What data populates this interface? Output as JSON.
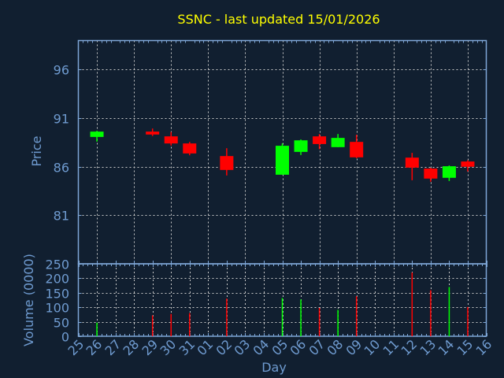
{
  "chart_data": [
    {
      "type": "candlestick",
      "title": "SSNC - last updated 15/01/2026",
      "ylabel": "Price",
      "xlabel": "",
      "ylim": [
        76,
        99
      ],
      "yticks": [
        96,
        91,
        86,
        81
      ],
      "grid": true,
      "categories": [
        "25",
        "26",
        "27",
        "28",
        "29",
        "30",
        "31",
        "01",
        "02",
        "03",
        "04",
        "05",
        "06",
        "07",
        "08",
        "09",
        "10",
        "11",
        "12",
        "13",
        "14",
        "15",
        "16"
      ],
      "candles": [
        {
          "day": "26",
          "open": 89.07,
          "high": 89.7,
          "low": 88.59,
          "close": 89.62
        },
        {
          "day": "29",
          "open": 89.62,
          "high": 89.94,
          "low": 89.16,
          "close": 89.32
        },
        {
          "day": "30",
          "open": 89.13,
          "high": 89.59,
          "low": 88.18,
          "close": 88.4
        },
        {
          "day": "31",
          "open": 88.4,
          "high": 88.56,
          "low": 87.18,
          "close": 87.37
        },
        {
          "day": "02",
          "open": 87.1,
          "high": 87.91,
          "low": 85.1,
          "close": 85.67
        },
        {
          "day": "05",
          "open": 85.18,
          "high": 88.4,
          "low": 85.18,
          "close": 88.16
        },
        {
          "day": "06",
          "open": 87.53,
          "high": 88.81,
          "low": 87.21,
          "close": 88.72
        },
        {
          "day": "07",
          "open": 89.13,
          "high": 89.37,
          "low": 87.81,
          "close": 88.34
        },
        {
          "day": "08",
          "open": 88.02,
          "high": 89.37,
          "low": 88.02,
          "close": 88.97
        },
        {
          "day": "09",
          "open": 88.56,
          "high": 89.29,
          "low": 86.88,
          "close": 86.97
        },
        {
          "day": "12",
          "open": 86.94,
          "high": 87.43,
          "low": 84.61,
          "close": 85.91
        },
        {
          "day": "13",
          "open": 85.81,
          "high": 85.89,
          "low": 84.45,
          "close": 84.78
        },
        {
          "day": "14",
          "open": 84.86,
          "high": 86.13,
          "low": 84.53,
          "close": 86.05
        },
        {
          "day": "15",
          "open": 86.54,
          "high": 86.67,
          "low": 85.51,
          "close": 86.0
        }
      ]
    },
    {
      "type": "bar",
      "ylabel": "Volume (0000)",
      "xlabel": "Day",
      "ylim": [
        0,
        250
      ],
      "yticks": [
        0,
        50,
        100,
        150,
        200,
        250
      ],
      "grid": true,
      "categories": [
        "25",
        "26",
        "27",
        "28",
        "29",
        "30",
        "31",
        "01",
        "02",
        "03",
        "04",
        "05",
        "06",
        "07",
        "08",
        "09",
        "10",
        "11",
        "12",
        "13",
        "14",
        "15",
        "16"
      ],
      "bars": [
        {
          "day": "26",
          "value": 47,
          "direction": "up"
        },
        {
          "day": "29",
          "value": 72,
          "direction": "down"
        },
        {
          "day": "30",
          "value": 77,
          "direction": "down"
        },
        {
          "day": "31",
          "value": 80,
          "direction": "down"
        },
        {
          "day": "02",
          "value": 130,
          "direction": "down"
        },
        {
          "day": "05",
          "value": 132,
          "direction": "up"
        },
        {
          "day": "06",
          "value": 127,
          "direction": "up"
        },
        {
          "day": "07",
          "value": 98,
          "direction": "down"
        },
        {
          "day": "08",
          "value": 91,
          "direction": "up"
        },
        {
          "day": "09",
          "value": 138,
          "direction": "down"
        },
        {
          "day": "12",
          "value": 220,
          "direction": "down"
        },
        {
          "day": "13",
          "value": 159,
          "direction": "down"
        },
        {
          "day": "14",
          "value": 170,
          "direction": "up"
        },
        {
          "day": "15",
          "value": 101,
          "direction": "down"
        }
      ]
    }
  ],
  "colors": {
    "background": "#111f30",
    "axis": "#7ea6d6",
    "label": "#6f9bd0",
    "title": "#ffff00",
    "grid": "#c8c8c8",
    "up": "#00ff00",
    "down": "#ff0000"
  }
}
